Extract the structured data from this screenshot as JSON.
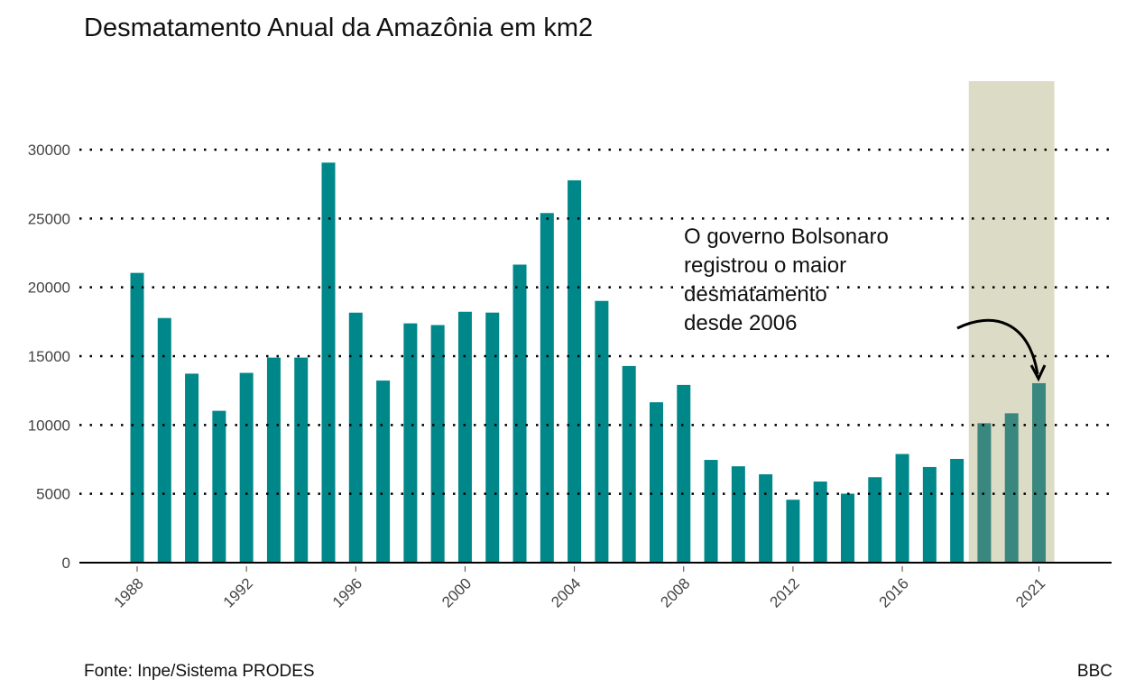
{
  "chart_data": {
    "type": "bar",
    "title": "Desmatamento Anual da Amazônia em km2",
    "xlabel": "",
    "ylabel": "",
    "ylim": [
      0,
      35000
    ],
    "yticks": [
      0,
      5000,
      10000,
      15000,
      20000,
      25000,
      30000
    ],
    "xtick_labels": [
      "1988",
      "1992",
      "1996",
      "2000",
      "2004",
      "2008",
      "2012",
      "2016",
      "2021"
    ],
    "grid": "horizontal dotted",
    "categories": [
      1988,
      1989,
      1990,
      1991,
      1992,
      1993,
      1994,
      1995,
      1996,
      1997,
      1998,
      1999,
      2000,
      2001,
      2002,
      2003,
      2004,
      2005,
      2006,
      2007,
      2008,
      2009,
      2010,
      2011,
      2012,
      2013,
      2014,
      2015,
      2016,
      2017,
      2018,
      2019,
      2020,
      2021
    ],
    "values": [
      21050,
      17770,
      13730,
      11030,
      13786,
      14896,
      14896,
      29059,
      18161,
      13227,
      17383,
      17259,
      18226,
      18165,
      21650,
      25396,
      27772,
      19014,
      14286,
      11651,
      12911,
      7464,
      7000,
      6418,
      4571,
      5891,
      5012,
      6207,
      7893,
      6947,
      7536,
      10129,
      10851,
      13038
    ],
    "highlight_range": [
      2019,
      2021
    ],
    "annotation": [
      "O governo Bolsonaro",
      "registrou o maior",
      "desmatamento",
      "desde 2006"
    ],
    "source": "Fonte: Inpe/Sistema PRODES",
    "credit": "BBC",
    "colors": {
      "bar": "#00878a",
      "bar_highlight": "#3a877f",
      "highlight_band": "#dcdcc6"
    }
  }
}
